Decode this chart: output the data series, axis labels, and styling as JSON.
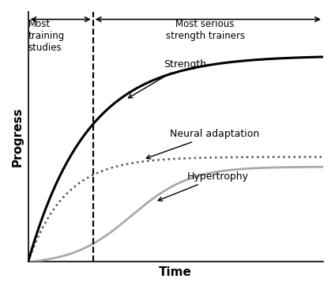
{
  "title": "",
  "xlabel": "Time",
  "ylabel": "Progress",
  "background_color": "#ffffff",
  "dashed_line_x": 0.22,
  "arrow_studies_label": "Most\ntraining\nstudies",
  "arrow_trainers_label": "Most serious\nstrength trainers",
  "strength_label": "Strength",
  "neural_label": "Neural adaptation",
  "hypertrophy_label": "Hypertrophy",
  "strength_color": "#000000",
  "neural_color": "#888888",
  "hypertrophy_color": "#aaaaaa",
  "dotted_color": "#555555",
  "dashed_color": "#000000",
  "xlim": [
    0,
    1
  ],
  "ylim": [
    0,
    1
  ]
}
